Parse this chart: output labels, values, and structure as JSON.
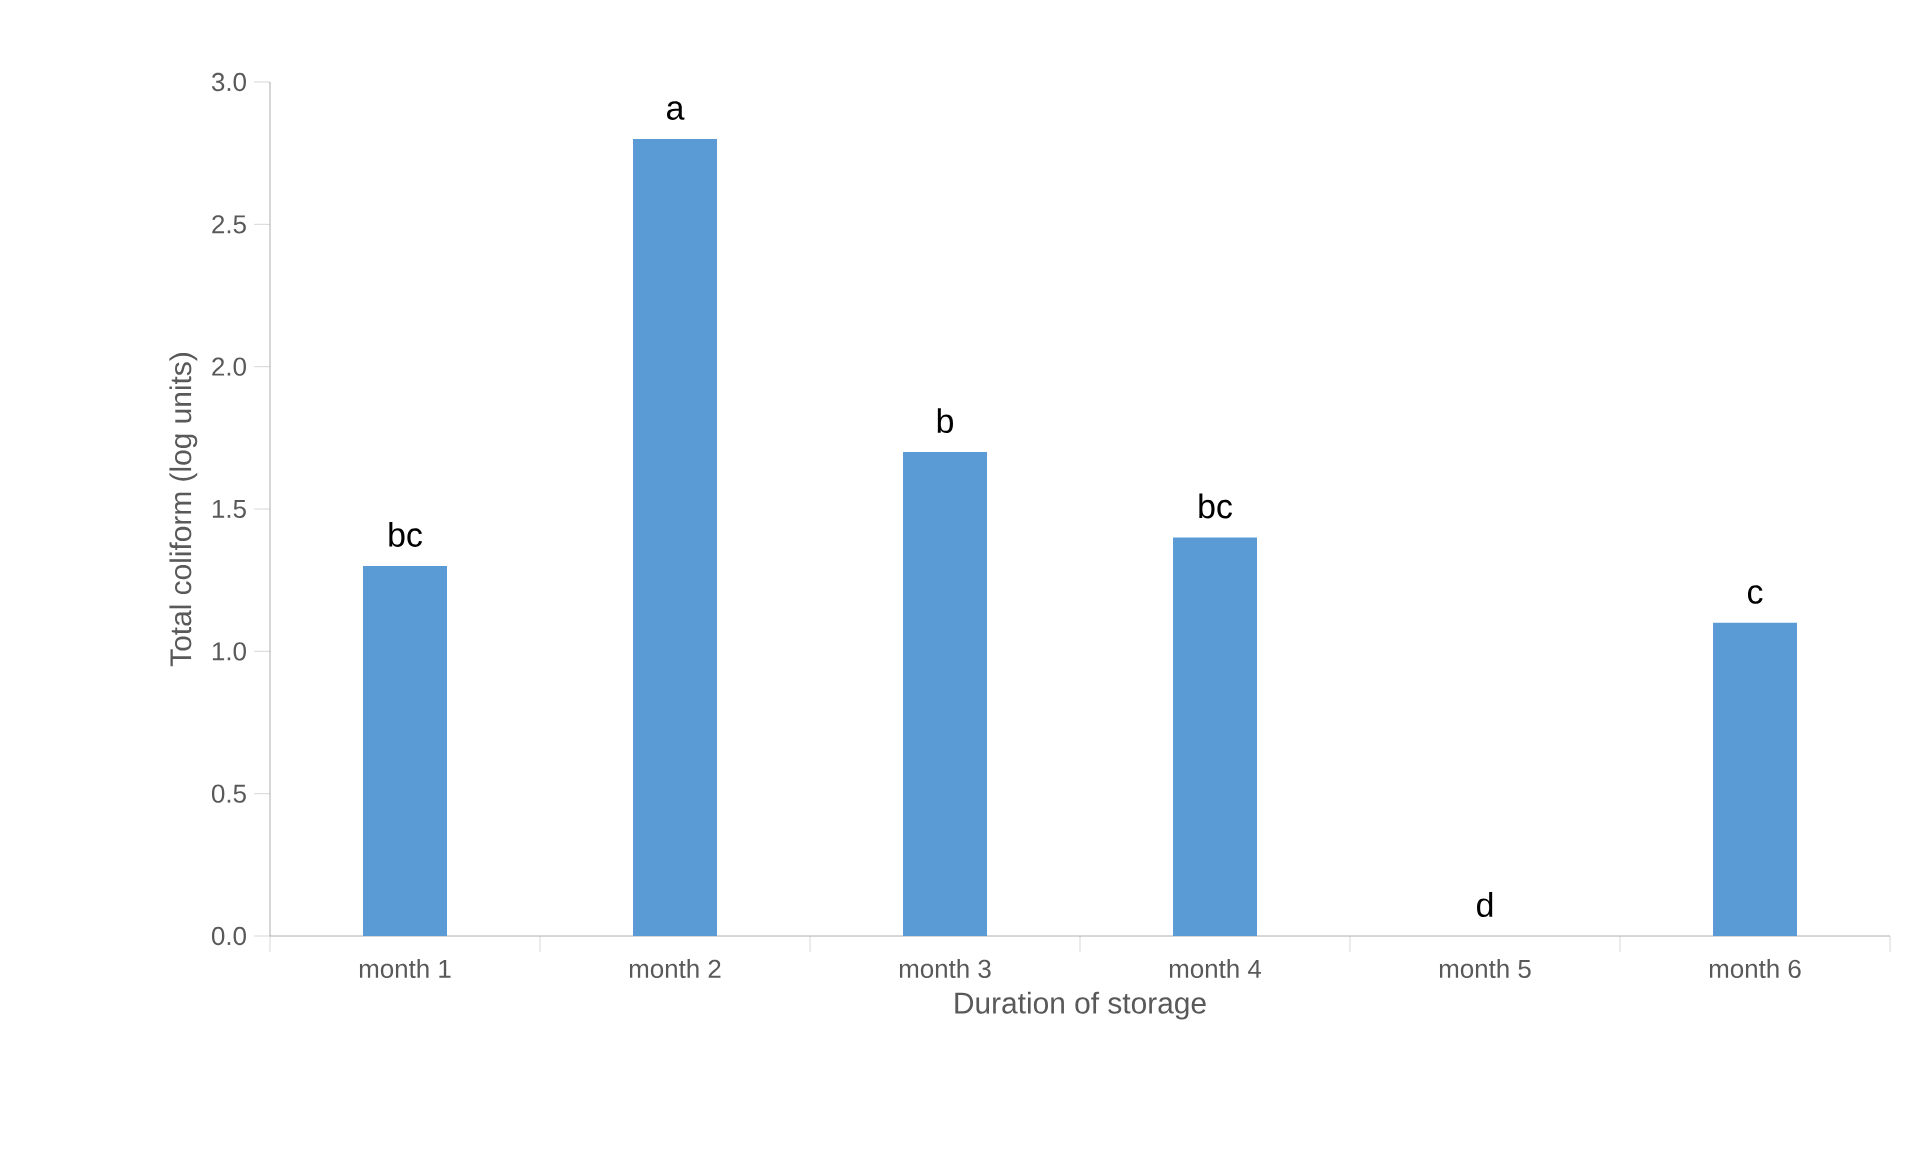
{
  "chart_data": {
    "type": "bar",
    "xlabel": "Duration of storage",
    "ylabel": "Total coliform (log units)",
    "categories": [
      "month 1",
      "month 2",
      "month 3",
      "month 4",
      "month 5",
      "month 6"
    ],
    "values": [
      1.3,
      2.8,
      1.7,
      1.4,
      0,
      1.1
    ],
    "color": "#5b9bd5",
    "ylim": [
      0,
      3
    ],
    "yticks": [
      {
        "value": 0,
        "label": "0.0"
      },
      {
        "value": 0.5,
        "label": "0.5"
      },
      {
        "value": 1,
        "label": "1.0"
      },
      {
        "value": 1.5,
        "label": "1.5"
      },
      {
        "value": 2,
        "label": "2.0"
      },
      {
        "value": 2.5,
        "label": "2.5"
      },
      {
        "value": 3,
        "label": "3.0"
      }
    ],
    "grid": false,
    "annotations": [
      {
        "text": "bc",
        "x": "month 1",
        "y": 1.3
      },
      {
        "text": "a",
        "x": "month 2",
        "y": 2.8
      },
      {
        "text": "b",
        "x": "month 3",
        "y": 1.7
      },
      {
        "text": "bc",
        "x": "month 4",
        "y": 1.4
      },
      {
        "text": "d",
        "x": "month 5",
        "y": 0
      },
      {
        "text": "c",
        "x": "month 6",
        "y": 1.1
      }
    ]
  }
}
